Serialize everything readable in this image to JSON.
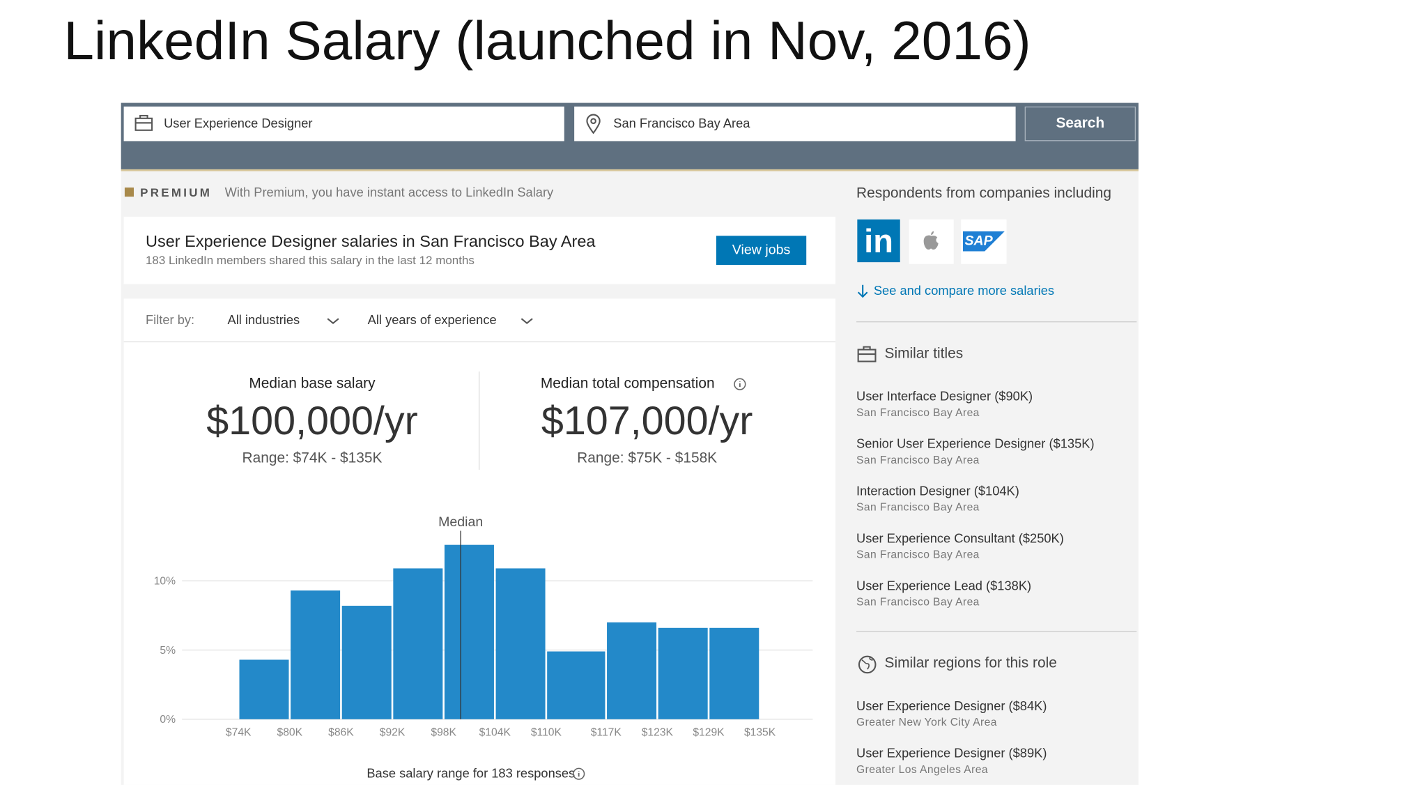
{
  "slide_title": "LinkedIn Salary (launched in Nov, 2016)",
  "search": {
    "job": "User Experience Designer",
    "location": "San Francisco Bay Area",
    "button": "Search"
  },
  "premium": {
    "badge": "PREMIUM",
    "text": "With Premium, you have instant access to LinkedIn Salary"
  },
  "header": {
    "title": "User Experience Designer salaries in San Francisco Bay Area",
    "subtitle": "183 LinkedIn members shared this salary in the last 12 months",
    "button": "View jobs"
  },
  "filter": {
    "label": "Filter by:",
    "industries": "All industries",
    "experience": "All years of experience"
  },
  "base": {
    "label": "Median base salary",
    "value": "$100,000/yr",
    "range": "Range: $74K - $135K"
  },
  "total": {
    "label": "Median total compensation",
    "value": "$107,000/yr",
    "range": "Range: $75K - $158K"
  },
  "histogram": {
    "median_label": "Median",
    "median": 100000,
    "bins": [
      {
        "value": 74000,
        "label": "$74K"
      },
      {
        "value": 80000,
        "label": "$80K"
      },
      {
        "value": 86000,
        "label": "$86K"
      },
      {
        "value": 92000,
        "label": "$92K"
      },
      {
        "value": 98000,
        "label": "$98K"
      },
      {
        "value": 104000,
        "label": "$104K"
      },
      {
        "value": 110000,
        "label": "$110K"
      },
      {
        "value": 117000,
        "label": "$117K"
      },
      {
        "value": 123000,
        "label": "$123K"
      },
      {
        "value": 129000,
        "label": "$129K"
      },
      {
        "value": 135000,
        "label": "$135K"
      }
    ],
    "values": [
      4.3,
      9.3,
      8.2,
      10.9,
      12.6,
      10.9,
      4.9,
      7.0,
      6.6,
      6.6
    ],
    "color": "#2389c9",
    "ylim": [
      0,
      15
    ],
    "yticks": [
      {
        "value": 0,
        "label": "0%"
      },
      {
        "value": 5,
        "label": "5%"
      },
      {
        "value": 10,
        "label": "10%"
      }
    ],
    "grid": true,
    "caption": "Base salary range for 183 responses"
  },
  "sidebar": {
    "respondents": "Respondents from companies including",
    "logos": [
      "in",
      "SAP"
    ],
    "see_more": "See and compare more salaries",
    "similar_titles": {
      "heading": "Similar titles",
      "items": [
        {
          "title": "User Interface Designer ($90K)",
          "region": "San Francisco Bay Area"
        },
        {
          "title": "Senior User Experience Designer ($135K)",
          "region": "San Francisco Bay Area"
        },
        {
          "title": "Interaction Designer ($104K)",
          "region": "San Francisco Bay Area"
        },
        {
          "title": "User Experience Consultant ($250K)",
          "region": "San Francisco Bay Area"
        },
        {
          "title": "User Experience Lead ($138K)",
          "region": "San Francisco Bay Area"
        }
      ]
    },
    "similar_regions": {
      "heading": "Similar regions for this role",
      "items": [
        {
          "title": "User Experience Designer ($84K)",
          "region": "Greater New York City Area"
        },
        {
          "title": "User Experience Designer ($89K)",
          "region": "Greater Los Angeles Area"
        }
      ]
    }
  }
}
